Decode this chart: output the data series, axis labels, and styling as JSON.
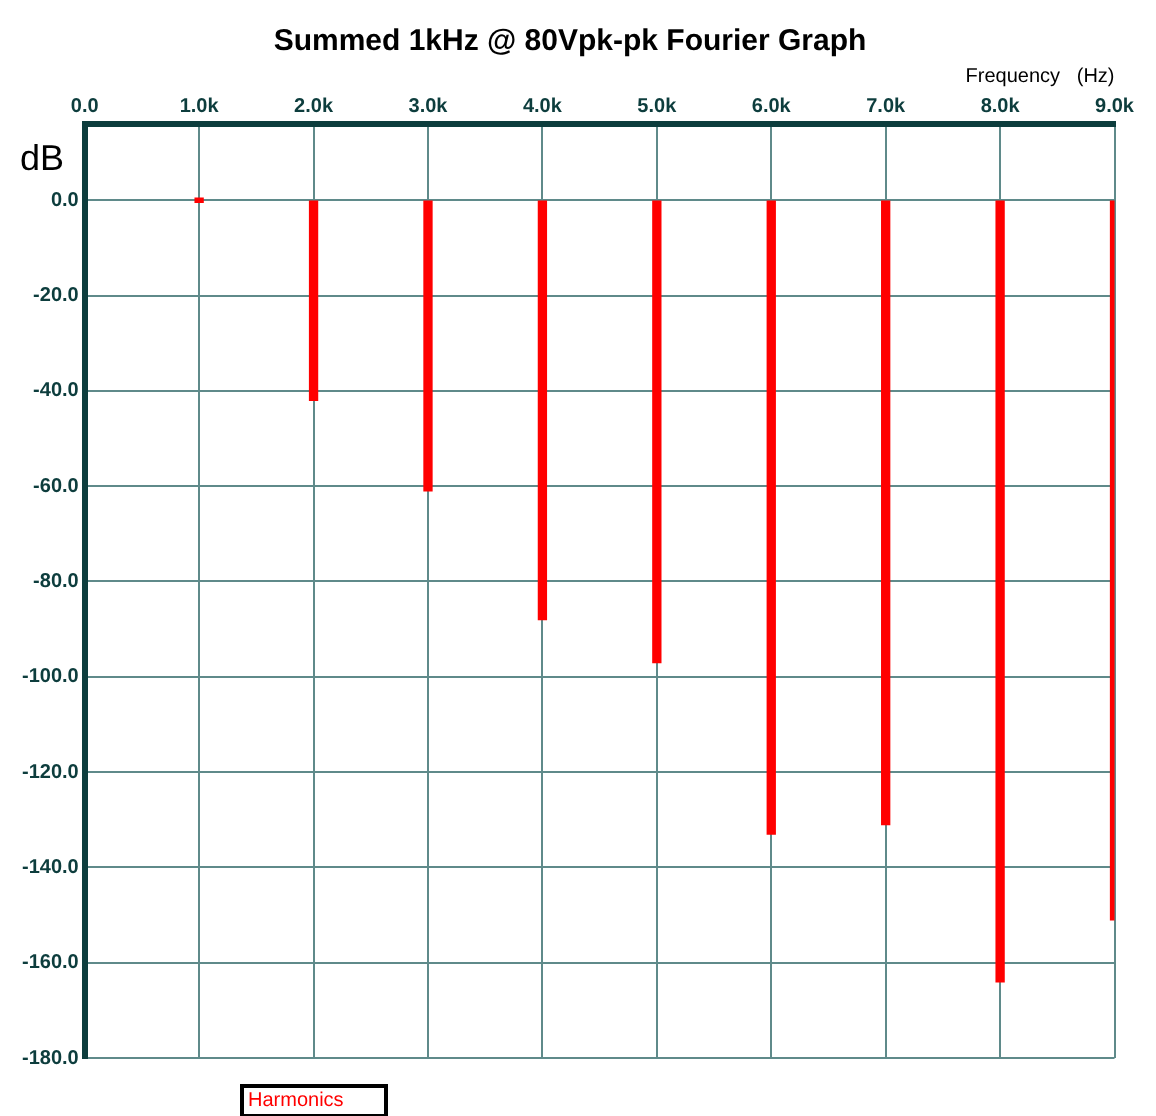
{
  "chart_data": {
    "type": "bar",
    "title": "Summed 1kHz @ 80Vpk-pk Fourier Graph",
    "xlabel": "Frequency   (Hz)",
    "ylabel": "dB",
    "x": [
      1000,
      2000,
      3000,
      4000,
      5000,
      6000,
      7000,
      8000,
      9000
    ],
    "series": [
      {
        "name": "Harmonics",
        "color": "#ff0000",
        "values": [
          0,
          -42,
          -61,
          -88,
          -97,
          -133,
          -131,
          -164,
          -151
        ]
      }
    ],
    "xlim": [
      0,
      9000
    ],
    "xticks": [
      {
        "value": 0,
        "label": "0.0"
      },
      {
        "value": 1000,
        "label": "1.0k"
      },
      {
        "value": 2000,
        "label": "2.0k"
      },
      {
        "value": 3000,
        "label": "3.0k"
      },
      {
        "value": 4000,
        "label": "4.0k"
      },
      {
        "value": 5000,
        "label": "5.0k"
      },
      {
        "value": 6000,
        "label": "6.0k"
      },
      {
        "value": 7000,
        "label": "7.0k"
      },
      {
        "value": 8000,
        "label": "8.0k"
      },
      {
        "value": 9000,
        "label": "9.0k"
      }
    ],
    "ylim": [
      -180,
      16
    ],
    "yticks": [
      {
        "value": 0,
        "label": "0.0"
      },
      {
        "value": -20,
        "label": "-20.0"
      },
      {
        "value": -40,
        "label": "-40.0"
      },
      {
        "value": -60,
        "label": "-60.0"
      },
      {
        "value": -80,
        "label": "-80.0"
      },
      {
        "value": -100,
        "label": "-100.0"
      },
      {
        "value": -120,
        "label": "-120.0"
      },
      {
        "value": -140,
        "label": "-140.0"
      },
      {
        "value": -160,
        "label": "-160.0"
      },
      {
        "value": -180,
        "label": "-180.0"
      }
    ],
    "grid": true,
    "legend": "bottom left"
  }
}
